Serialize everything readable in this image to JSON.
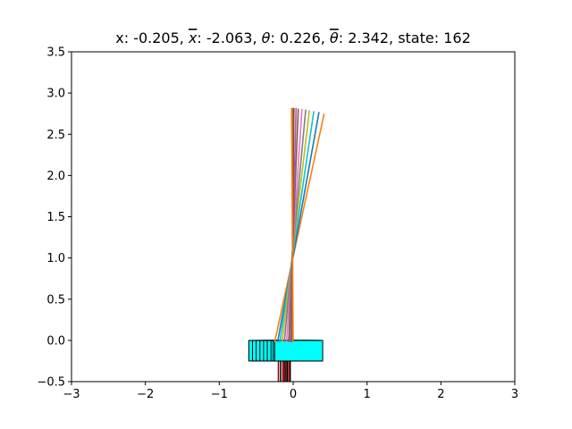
{
  "chart_data": {
    "type": "line",
    "title_parts": [
      {
        "text": "x: "
      },
      {
        "text": "-0.205"
      },
      {
        "text": ", "
      },
      {
        "text": "x",
        "dot": 1,
        "italic": true
      },
      {
        "text": ": "
      },
      {
        "text": "-2.063"
      },
      {
        "text": ", "
      },
      {
        "text": "θ",
        "italic": true
      },
      {
        "text": ": "
      },
      {
        "text": "0.226"
      },
      {
        "text": ", "
      },
      {
        "text": "θ",
        "dot": 1,
        "italic": true
      },
      {
        "text": ": "
      },
      {
        "text": "2.342"
      },
      {
        "text": ", state: "
      },
      {
        "text": "162"
      }
    ],
    "xlim": [
      -3,
      3
    ],
    "ylim": [
      -0.5,
      3.5
    ],
    "xticks": [
      -3,
      -2,
      -1,
      0,
      1,
      2,
      3
    ],
    "xtick_labels": [
      "−3",
      "−2",
      "−1",
      "0",
      "1",
      "2",
      "3"
    ],
    "yticks": [
      -0.5,
      0.0,
      0.5,
      1.0,
      1.5,
      2.0,
      2.5,
      3.0,
      3.5
    ],
    "ytick_labels": [
      "−0.5",
      "0.0",
      "0.5",
      "1.0",
      "1.5",
      "2.0",
      "2.5",
      "3.0",
      "3.5"
    ],
    "grid": false,
    "cart": {
      "height": 0.25,
      "top_y": -0.0,
      "edge_color": "#000000",
      "front_color": "#00ffff",
      "positions": [
        {
          "left": -0.6,
          "right": 0.05
        },
        {
          "left": -0.55,
          "right": 0.1
        },
        {
          "left": -0.5,
          "right": 0.15
        },
        {
          "left": -0.45,
          "right": 0.2
        },
        {
          "left": -0.4,
          "right": 0.25
        },
        {
          "left": -0.35,
          "right": 0.3
        },
        {
          "left": -0.3,
          "right": 0.35
        },
        {
          "left": -0.27,
          "right": 0.38
        },
        {
          "left": -0.25,
          "right": 0.4
        }
      ]
    },
    "wheels": {
      "y_top": -0.25,
      "y_bottom": -0.5,
      "x": [
        -0.2,
        -0.17,
        -0.14,
        -0.12,
        -0.1,
        -0.08,
        -0.06,
        -0.04
      ],
      "colors": [
        "#8b0000",
        "#000000",
        "#cc0000",
        "#000000",
        "#8b0000",
        "#000000",
        "#aa0000",
        "#000000"
      ]
    },
    "pole_series": [
      {
        "color": "#ff7f0e",
        "x0": -0.25,
        "y0": -0.02,
        "x1": 0.42,
        "y1": 2.75
      },
      {
        "color": "#1f77b4",
        "x0": -0.21,
        "y0": -0.02,
        "x1": 0.35,
        "y1": 2.77
      },
      {
        "color": "#17becf",
        "x0": -0.18,
        "y0": -0.02,
        "x1": 0.28,
        "y1": 2.78
      },
      {
        "color": "#bcbd22",
        "x0": -0.15,
        "y0": -0.02,
        "x1": 0.22,
        "y1": 2.79
      },
      {
        "color": "#7f7f7f",
        "x0": -0.12,
        "y0": -0.02,
        "x1": 0.17,
        "y1": 2.8
      },
      {
        "color": "#e377c2",
        "x0": -0.09,
        "y0": -0.02,
        "x1": 0.12,
        "y1": 2.81
      },
      {
        "color": "#8c564b",
        "x0": -0.06,
        "y0": -0.02,
        "x1": 0.07,
        "y1": 2.81
      },
      {
        "color": "#9467bd",
        "x0": -0.04,
        "y0": -0.02,
        "x1": 0.04,
        "y1": 2.82
      },
      {
        "color": "#d62728",
        "x0": -0.02,
        "y0": -0.02,
        "x1": 0.01,
        "y1": 2.82
      },
      {
        "color": "#2ca02c",
        "x0": -0.01,
        "y0": -0.02,
        "x1": -0.01,
        "y1": 2.82
      },
      {
        "color": "#ff7f0e",
        "x0": 0.0,
        "y0": -0.02,
        "x1": -0.02,
        "y1": 2.82
      }
    ]
  }
}
